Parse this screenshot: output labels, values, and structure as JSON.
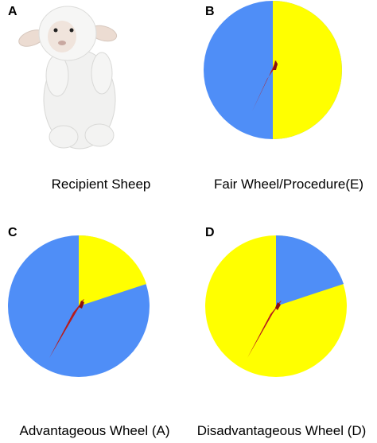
{
  "panels": {
    "a": {
      "letter": "A",
      "caption": "Recipient Sheep",
      "icon": "sheep-plush-icon"
    },
    "b": {
      "letter": "B",
      "caption": "Fair Wheel/Procedure(E)",
      "blue_fraction": 0.5,
      "yellow_fraction": 0.5
    },
    "c": {
      "letter": "C",
      "caption": "Advantageous Wheel (A)",
      "blue_fraction": 0.8,
      "yellow_fraction": 0.2
    },
    "d": {
      "letter": "D",
      "caption": "Disadvantageous Wheel (D)",
      "blue_fraction": 0.2,
      "yellow_fraction": 0.8
    }
  },
  "colors": {
    "blue": "#4f8ef7",
    "yellow": "#ffff00",
    "needle": "#b71c1c"
  }
}
